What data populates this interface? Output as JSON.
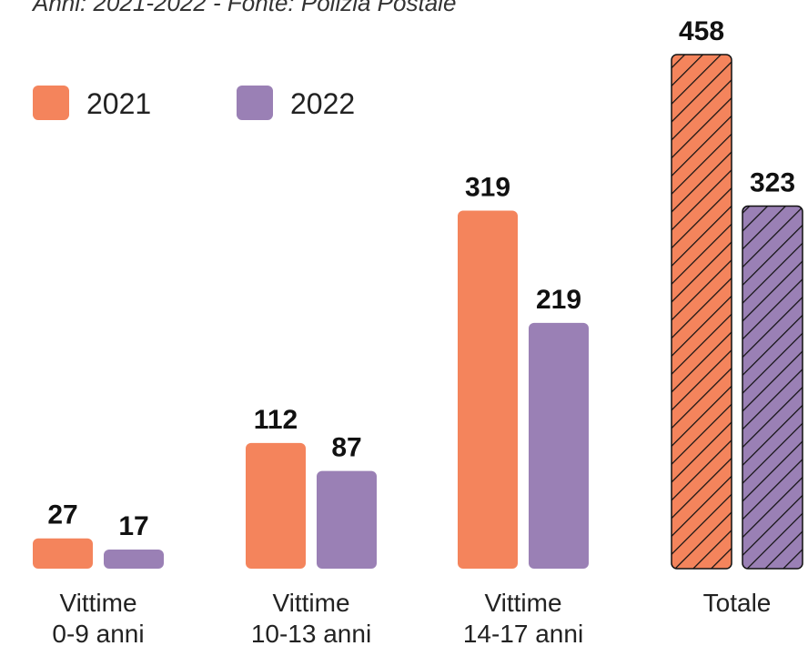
{
  "chart_data": {
    "type": "bar",
    "subtitle": "Anni: 2021-2022 - Fonte: Polizia Postale",
    "categories": [
      "Vittime\n0-9 anni",
      "Vittime\n10-13 anni",
      "Vittime\n14-17 anni",
      "Totale"
    ],
    "hatched": [
      false,
      false,
      false,
      true
    ],
    "series": [
      {
        "name": "2021",
        "color": "#f4845c",
        "values": [
          27,
          112,
          319,
          458
        ]
      },
      {
        "name": "2022",
        "color": "#9a80b5",
        "values": [
          17,
          87,
          219,
          323
        ]
      }
    ],
    "legend": "top-left"
  }
}
